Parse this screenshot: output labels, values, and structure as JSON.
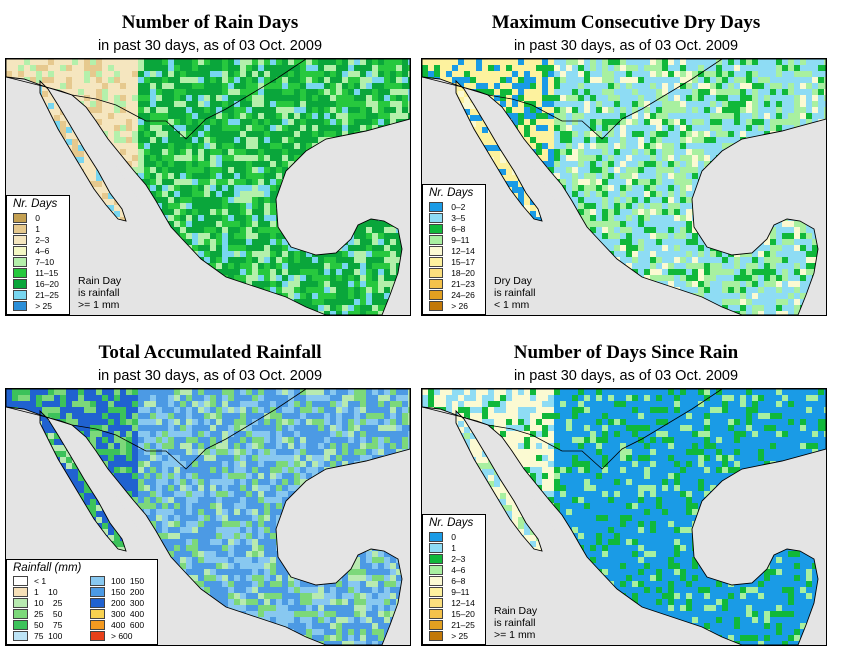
{
  "panels": [
    {
      "id": "rain_days",
      "title": "Number of Rain Days",
      "subtitle": "in past 30 days, as of  03 Oct. 2009",
      "legend_title": "Nr. Days",
      "legend": [
        {
          "label": "0",
          "color": "#c4a052"
        },
        {
          "label": "1",
          "color": "#e6c98e"
        },
        {
          "label": "2–3",
          "color": "#f5e6bf"
        },
        {
          "label": "4–6",
          "color": "#f4f7c4"
        },
        {
          "label": "7–10",
          "color": "#b4f0ab"
        },
        {
          "label": "11–15",
          "color": "#27c83e"
        },
        {
          "label": "16–20",
          "color": "#0aa63b"
        },
        {
          "label": "21–25",
          "color": "#78d6f0"
        },
        {
          "label": "> 25",
          "color": "#2a8ed8"
        }
      ],
      "note": [
        "Rain Day",
        "is rainfall",
        ">= 1 mm"
      ],
      "palette": [
        "#0aa63b",
        "#27c83e",
        "#b4f0ab",
        "#78d6f0",
        "#f5e6bf",
        "#e6c98e"
      ]
    },
    {
      "id": "dry_days",
      "title": "Maximum Consecutive Dry Days",
      "subtitle": "in past 30 days, as of  03 Oct. 2009",
      "legend_title": "Nr. Days",
      "legend": [
        {
          "label": "0–2",
          "color": "#1a9be6"
        },
        {
          "label": "3–5",
          "color": "#8edcf4"
        },
        {
          "label": "6–8",
          "color": "#10b83a"
        },
        {
          "label": "9–11",
          "color": "#a8f0a0"
        },
        {
          "label": "12–14",
          "color": "#fbfad2"
        },
        {
          "label": "15–17",
          "color": "#fdf29e"
        },
        {
          "label": "18–20",
          "color": "#fce07e"
        },
        {
          "label": "21–23",
          "color": "#f4c24a"
        },
        {
          "label": "24–26",
          "color": "#e2a020"
        },
        {
          "label": "> 26",
          "color": "#c27808"
        }
      ],
      "note": [
        "Dry Day",
        "is rainfall",
        "< 1 mm"
      ],
      "palette": [
        "#8edcf4",
        "#a8f0a0",
        "#10b83a",
        "#fbfad2",
        "#fdf29e",
        "#1a9be6"
      ]
    },
    {
      "id": "total_rain",
      "title": "Total Accumulated Rainfall",
      "subtitle": "in past 30 days, as of  03 Oct. 2009",
      "legend_title": "Rainfall (mm)",
      "legend": [
        {
          "label": "< 1",
          "color": "#ffffff"
        },
        {
          "label": "100  150",
          "color": "#88c8f0"
        },
        {
          "label": "1    10",
          "color": "#f6e0b8"
        },
        {
          "label": "150  200",
          "color": "#4c9ae4"
        },
        {
          "label": "10    25",
          "color": "#b8eab0"
        },
        {
          "label": "200  300",
          "color": "#2062d0"
        },
        {
          "label": "25    50",
          "color": "#7cd87a"
        },
        {
          "label": "300  400",
          "color": "#f8d250"
        },
        {
          "label": "50    75",
          "color": "#3cc25a"
        },
        {
          "label": "400  600",
          "color": "#f49a20"
        },
        {
          "label": "75  100",
          "color": "#bde4f6"
        },
        {
          "label": "> 600",
          "color": "#e8401a"
        }
      ],
      "palette": [
        "#4c9ae4",
        "#88c8f0",
        "#7cd87a",
        "#b8eab0",
        "#2062d0",
        "#3cc25a"
      ]
    },
    {
      "id": "since_rain",
      "title": "Number of Days Since Rain",
      "subtitle": "in past 30 days, as of  03 Oct. 2009",
      "legend_title": "Nr. Days",
      "legend": [
        {
          "label": "0",
          "color": "#1a9be6"
        },
        {
          "label": "1",
          "color": "#8edcf4"
        },
        {
          "label": "2–3",
          "color": "#10b83a"
        },
        {
          "label": "4–6",
          "color": "#a8f0a0"
        },
        {
          "label": "6–8",
          "color": "#fbfad2"
        },
        {
          "label": "9–11",
          "color": "#fdf29e"
        },
        {
          "label": "12–14",
          "color": "#fce07e"
        },
        {
          "label": "15–20",
          "color": "#f4c24a"
        },
        {
          "label": "21–25",
          "color": "#e2a020"
        },
        {
          "label": "> 25",
          "color": "#c27808"
        }
      ],
      "note": [
        "Rain Day",
        "is rainfall",
        ">= 1 mm"
      ],
      "palette": [
        "#1a9be6",
        "#1a9be6",
        "#10b83a",
        "#a8f0a0",
        "#fbfad2",
        "#8edcf4"
      ]
    }
  ]
}
